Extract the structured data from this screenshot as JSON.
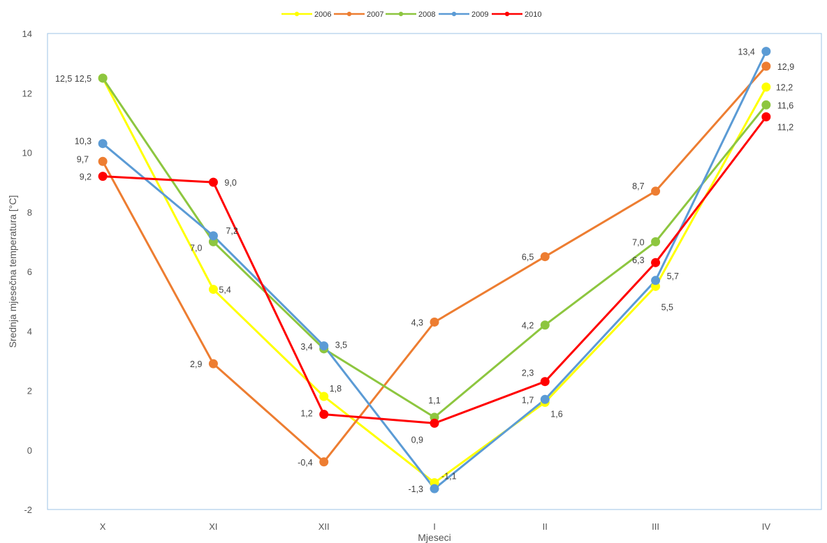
{
  "chart_data": {
    "type": "line",
    "categories": [
      "X",
      "XI",
      "XII",
      "I",
      "II",
      "III",
      "IV"
    ],
    "xlabel": "Mjeseci",
    "ylabel": "Srednja mjesečna temperatura [°C]",
    "ylim": [
      -2,
      14
    ],
    "yticks": [
      -2,
      0,
      2,
      4,
      6,
      8,
      10,
      12,
      14
    ],
    "ytick_labels": [
      "-2",
      "0",
      "2",
      "4",
      "6",
      "8",
      "10",
      "12",
      "14"
    ],
    "grid": false,
    "legend_position": "top",
    "series": [
      {
        "name": "2006",
        "color": "#ffff00",
        "values": [
          12.5,
          5.4,
          1.8,
          -1.1,
          1.6,
          5.5,
          12.2
        ],
        "labels": [
          "",
          "5,4",
          "1,8",
          "-1,1",
          "1,6",
          "5,5",
          "12,2"
        ]
      },
      {
        "name": "2007",
        "color": "#ed7d31",
        "values": [
          9.7,
          2.9,
          -0.4,
          4.3,
          6.5,
          8.7,
          12.9
        ],
        "labels": [
          "9,7",
          "2,9",
          "-0,4",
          "4,3",
          "6,5",
          "8,7",
          "12,9"
        ]
      },
      {
        "name": "2008",
        "color": "#8dc63f",
        "values": [
          12.5,
          7.0,
          3.4,
          1.1,
          4.2,
          7.0,
          11.6
        ],
        "labels": [
          "12,5 12,5",
          "7,0",
          "3,4",
          "1,1",
          "4,2",
          "7,0",
          "11,6"
        ]
      },
      {
        "name": "2009",
        "color": "#5b9bd5",
        "values": [
          10.3,
          7.2,
          3.5,
          -1.3,
          1.7,
          5.7,
          13.4
        ],
        "labels": [
          "10,3",
          "7,2",
          "3,5",
          "-1,3",
          "1,7",
          "5,7",
          "13,4"
        ]
      },
      {
        "name": "2010",
        "color": "#ff0000",
        "values": [
          9.2,
          9.0,
          1.2,
          0.9,
          2.3,
          6.3,
          11.2
        ],
        "labels": [
          "9,2",
          "9,0",
          "1,2",
          "0,9",
          "2,3",
          "6,3",
          "11,2"
        ]
      }
    ]
  }
}
